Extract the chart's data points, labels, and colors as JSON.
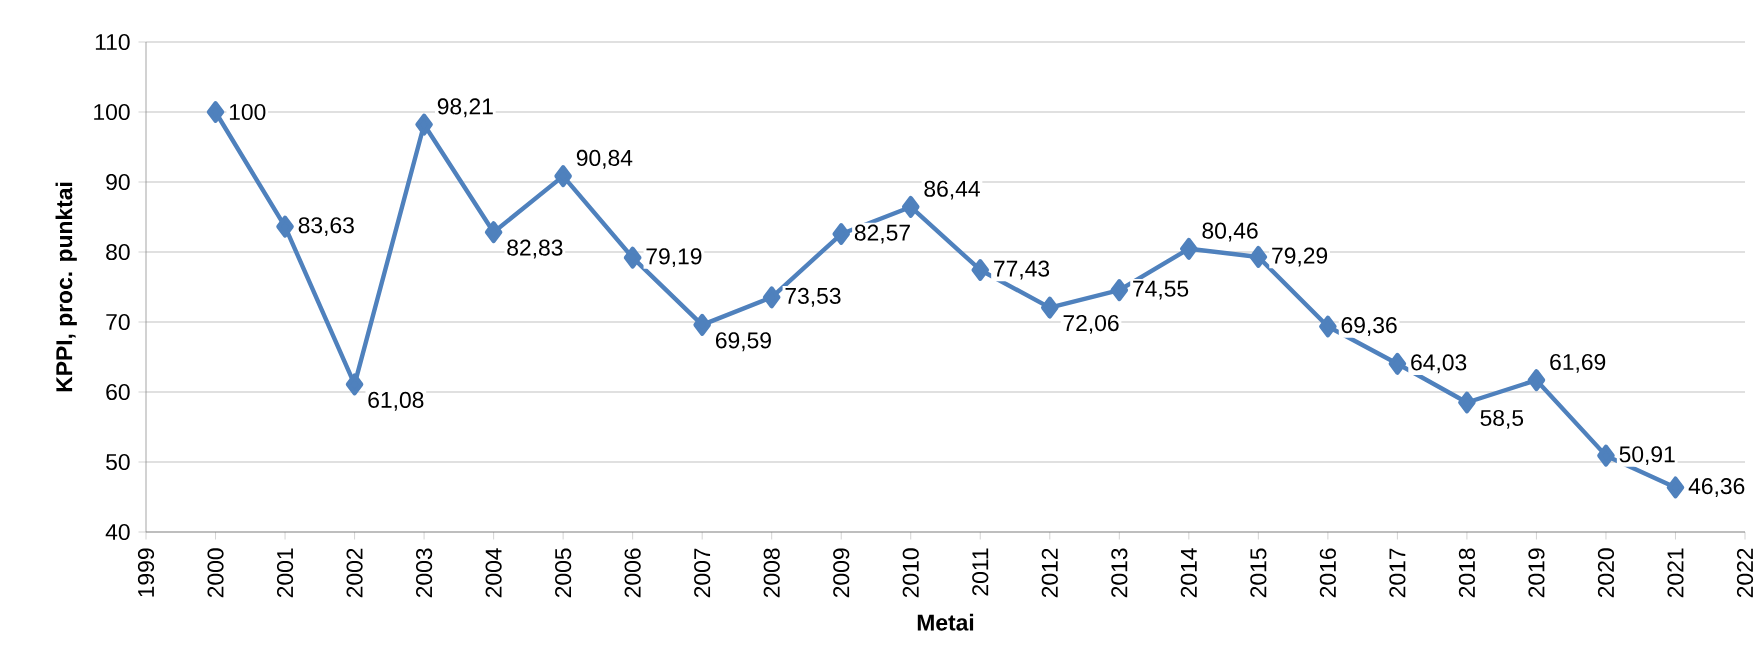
{
  "chart_data": {
    "type": "line",
    "xlabel": "Metai",
    "ylabel": "KPPI, proc. punktai",
    "x": [
      2000,
      2001,
      2002,
      2003,
      2004,
      2005,
      2006,
      2007,
      2008,
      2009,
      2010,
      2011,
      2012,
      2013,
      2014,
      2015,
      2016,
      2017,
      2018,
      2019,
      2020,
      2021
    ],
    "values": [
      100,
      83.63,
      61.08,
      98.21,
      82.83,
      90.84,
      79.19,
      69.59,
      73.53,
      82.57,
      86.44,
      77.43,
      72.06,
      74.55,
      80.46,
      79.29,
      69.36,
      64.03,
      58.5,
      61.69,
      50.91,
      46.36
    ],
    "value_labels": [
      "100",
      "83,63",
      "61,08",
      "98,21",
      "82,83",
      "90,84",
      "79,19",
      "69,59",
      "73,53",
      "82,57",
      "86,44",
      "77,43",
      "72,06",
      "74,55",
      "80,46",
      "79,29",
      "69,36",
      "64,03",
      "58,5",
      "61,69",
      "50,91",
      "46,36"
    ],
    "color": "#4f81bd",
    "marker": "diamond",
    "line_style": "solid",
    "grid": "y",
    "xlim": [
      1999,
      2022
    ],
    "xticks": [
      1999,
      2000,
      2001,
      2002,
      2003,
      2004,
      2005,
      2006,
      2007,
      2008,
      2009,
      2010,
      2011,
      2012,
      2013,
      2014,
      2015,
      2016,
      2017,
      2018,
      2019,
      2020,
      2021,
      2022
    ],
    "ylim": [
      40,
      110
    ],
    "yticks": [
      40,
      50,
      60,
      70,
      80,
      90,
      100,
      110
    ]
  }
}
